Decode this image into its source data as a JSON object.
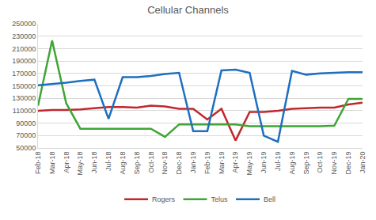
{
  "chart_data": {
    "type": "line",
    "title": "Cellular Channels",
    "categories": [
      "Feb-18",
      "Mar-18",
      "Apr-18",
      "May-18",
      "Jun-18",
      "Jul-18",
      "Aug-18",
      "Sep-18",
      "Oct-18",
      "Nov-18",
      "Dec-18",
      "Jan-19",
      "Feb-19",
      "Mar-19",
      "Apr-19",
      "May-19",
      "Jun-19",
      "Jul-19",
      "Aug-19",
      "Sep-19",
      "Oct-19",
      "Nov-19",
      "Dec-19",
      "Jan-20"
    ],
    "series": [
      {
        "name": "Rogers",
        "color": "#c0282d",
        "values": [
          110000,
          111000,
          111000,
          112000,
          114000,
          116000,
          116000,
          115000,
          118000,
          117000,
          113000,
          113000,
          96000,
          113000,
          62000,
          108000,
          108000,
          110000,
          113000,
          114000,
          115000,
          115000,
          120000,
          123000
        ]
      },
      {
        "name": "Telus",
        "color": "#3fa535",
        "values": [
          118000,
          223000,
          122000,
          81000,
          81000,
          81000,
          81000,
          81000,
          81000,
          68000,
          88000,
          88000,
          88000,
          88000,
          88000,
          85000,
          85000,
          85000,
          85000,
          85000,
          85000,
          86000,
          129000,
          129000
        ]
      },
      {
        "name": "Bell",
        "color": "#1f6fbf",
        "values": [
          151000,
          153000,
          155000,
          158000,
          160000,
          97000,
          164000,
          164000,
          166000,
          169000,
          171000,
          77000,
          77000,
          175000,
          176000,
          171000,
          70000,
          60000,
          174000,
          168000,
          170000,
          171000,
          172000,
          172000
        ]
      }
    ],
    "ylim": [
      50000,
      250000
    ],
    "yticks": [
      50000,
      70000,
      90000,
      110000,
      130000,
      150000,
      170000,
      190000,
      210000,
      230000,
      250000
    ],
    "grid": true,
    "legend": "bottom"
  }
}
